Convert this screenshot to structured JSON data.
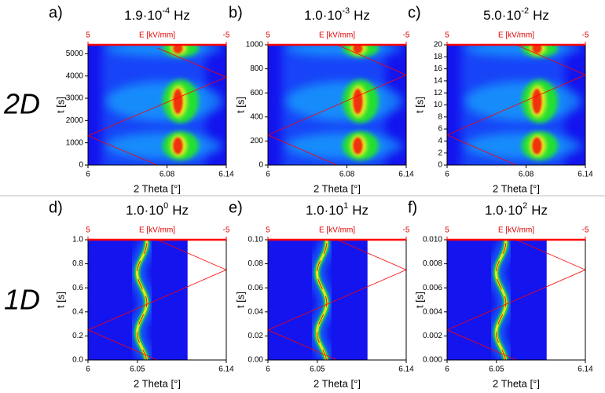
{
  "rows": [
    {
      "label": "2D"
    },
    {
      "label": "1D"
    }
  ],
  "chart_data": [
    {
      "type": "heatmap",
      "panel": "a)",
      "title": {
        "mantissa": "1.9·10",
        "exponent": "-4",
        "unit": "Hz"
      },
      "xlabel": "2 Theta [°]",
      "ylabel": "t [s]",
      "x2label": "E [kV/mm]",
      "xlim": [
        6,
        6.14
      ],
      "xticks": [
        6,
        6.08,
        6.14
      ],
      "x2lim": [
        5,
        -5
      ],
      "x2ticks": [
        5,
        -5
      ],
      "ylim": [
        0,
        5400
      ],
      "yticks": [
        0,
        1000,
        2000,
        3000,
        4000,
        5000
      ],
      "field": {
        "color": "#ff0000",
        "x": [
          0,
          5,
          -5,
          0
        ],
        "values": [
          0,
          1316,
          3947,
          5263
        ]
      }
    },
    {
      "type": "heatmap",
      "panel": "b)",
      "title": {
        "mantissa": "1.0·10",
        "exponent": "-3",
        "unit": "Hz"
      },
      "xlabel": "2 Theta [°]",
      "ylabel": "t [s]",
      "x2label": "E [kV/mm]",
      "xlim": [
        6,
        6.14
      ],
      "xticks": [
        6,
        6.08,
        6.14
      ],
      "x2lim": [
        5,
        -5
      ],
      "x2ticks": [
        5,
        -5
      ],
      "ylim": [
        0,
        1000
      ],
      "yticks": [
        0,
        200,
        400,
        600,
        800,
        1000
      ],
      "field": {
        "color": "#ff0000",
        "x": [
          0,
          5,
          -5,
          0
        ],
        "values": [
          0,
          250,
          750,
          1000
        ]
      }
    },
    {
      "type": "heatmap",
      "panel": "c)",
      "title": {
        "mantissa": "5.0·10",
        "exponent": "-2",
        "unit": "Hz"
      },
      "xlabel": "2 Theta [°]",
      "ylabel": "t [s]",
      "x2label": "E [kV/mm]",
      "xlim": [
        6,
        6.14
      ],
      "xticks": [
        6,
        6.08,
        6.14
      ],
      "x2lim": [
        5,
        -5
      ],
      "x2ticks": [
        5,
        -5
      ],
      "ylim": [
        0,
        20
      ],
      "yticks": [
        0,
        2,
        4,
        6,
        8,
        10,
        12,
        14,
        16,
        18,
        20
      ],
      "field": {
        "color": "#ff0000",
        "x": [
          0,
          5,
          -5,
          0
        ],
        "values": [
          0,
          5,
          15,
          20
        ]
      }
    },
    {
      "type": "heatmap",
      "panel": "d)",
      "title": {
        "mantissa": "1.0·10",
        "exponent": "0",
        "unit": "Hz"
      },
      "xlabel": "2 Theta [°]",
      "ylabel": "t [s]",
      "x2label": "E [kV/mm]",
      "xlim": [
        6,
        6.14
      ],
      "xticks": [
        6,
        6.05,
        6.14
      ],
      "x2lim": [
        5,
        -5
      ],
      "x2ticks": [
        5,
        -5
      ],
      "ylim": [
        0,
        1
      ],
      "yticks": [
        {
          "value": 0,
          "label": "0.0"
        },
        0.2,
        0.4,
        0.6,
        0.8,
        {
          "value": 1,
          "label": "1.0"
        }
      ],
      "field": {
        "color": "#ff0000",
        "x": [
          0,
          5,
          -5,
          0
        ],
        "values": [
          0,
          0.25,
          0.75,
          1
        ]
      }
    },
    {
      "type": "heatmap",
      "panel": "e)",
      "title": {
        "mantissa": "1.0·10",
        "exponent": "1",
        "unit": "Hz"
      },
      "xlabel": "2 Theta [°]",
      "ylabel": "t [s]",
      "x2label": "E [kV/mm]",
      "xlim": [
        6,
        6.14
      ],
      "xticks": [
        6,
        6.05,
        6.14
      ],
      "x2lim": [
        5,
        -5
      ],
      "x2ticks": [
        5,
        -5
      ],
      "ylim": [
        0,
        0.1
      ],
      "yticks": [
        {
          "value": 0,
          "label": "0.00"
        },
        0.02,
        0.04,
        0.06,
        0.08,
        {
          "value": 0.1,
          "label": "0.10"
        }
      ],
      "field": {
        "color": "#ff0000",
        "x": [
          0,
          5,
          -5,
          0
        ],
        "values": [
          0,
          0.025,
          0.075,
          0.1
        ]
      }
    },
    {
      "type": "heatmap",
      "panel": "f)",
      "title": {
        "mantissa": "1.0·10",
        "exponent": "2",
        "unit": "Hz"
      },
      "xlabel": "2 Theta [°]",
      "ylabel": "t [s]",
      "x2label": "E [kV/mm]",
      "xlim": [
        6,
        6.14
      ],
      "xticks": [
        6,
        6.05,
        6.14
      ],
      "x2lim": [
        5,
        -5
      ],
      "x2ticks": [
        5,
        -5
      ],
      "ylim": [
        0,
        0.01
      ],
      "yticks": [
        {
          "value": 0,
          "label": "0.000"
        },
        0.002,
        0.004,
        0.006,
        0.008,
        {
          "value": 0.01,
          "label": "0.010"
        }
      ],
      "field": {
        "color": "#ff0000",
        "x": [
          0,
          5,
          -5,
          0
        ],
        "values": [
          0,
          0.0025,
          0.0075,
          0.01
        ]
      }
    }
  ]
}
